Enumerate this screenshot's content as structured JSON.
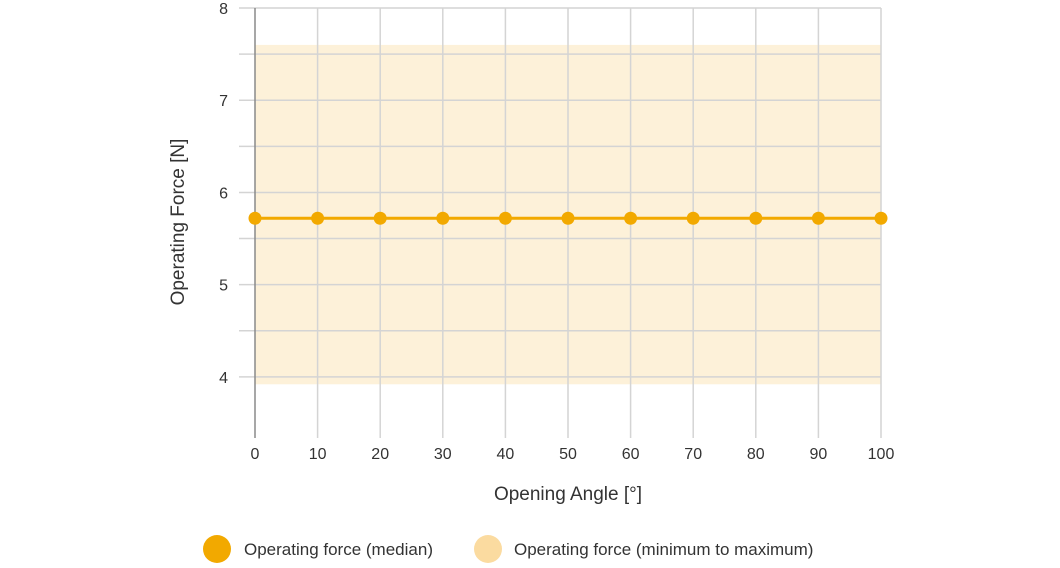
{
  "chart_data": {
    "type": "line",
    "xlabel": "Opening Angle [°]",
    "ylabel": "Operating Force [N]",
    "xlim": [
      0,
      100
    ],
    "ylim": [
      3.5,
      8
    ],
    "x_ticks": [
      "0",
      "10",
      "20",
      "30",
      "40",
      "50",
      "60",
      "70",
      "80",
      "90",
      "100"
    ],
    "y_ticks": [
      "4",
      "5",
      "6",
      "7",
      "8"
    ],
    "grid": true,
    "x": [
      0,
      10,
      20,
      30,
      40,
      50,
      60,
      70,
      80,
      90,
      100
    ],
    "series": [
      {
        "name": "Operating force (median)",
        "values": [
          5.72,
          5.72,
          5.72,
          5.72,
          5.72,
          5.72,
          5.72,
          5.72,
          5.72,
          5.72,
          5.72
        ],
        "color": "#f2a900"
      }
    ],
    "band": {
      "name": "Operating force (minimum to maximum)",
      "lower": 3.92,
      "upper": 7.6,
      "color": "#fdf1d9"
    },
    "legend_placement": "bottom"
  },
  "legend": {
    "items": [
      {
        "label": "Operating force (median)",
        "color": "#f2a900"
      },
      {
        "label": "Operating force (minimum to maximum)",
        "color": "#fbdba0"
      }
    ]
  }
}
